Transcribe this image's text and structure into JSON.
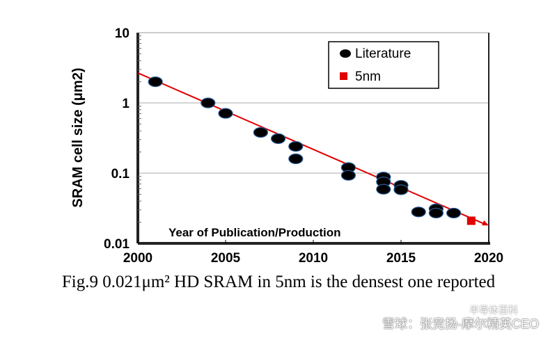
{
  "chart_data": {
    "type": "scatter",
    "ylabel": "SRAM cell size  (μm2)",
    "xlabel": "Year of Publication/Production",
    "yscale": "log",
    "xlim": [
      2000,
      2020
    ],
    "ylim": [
      0.01,
      10
    ],
    "xticks": [
      "2000",
      "2005",
      "2010",
      "2015",
      "2020"
    ],
    "yticks": [
      "0.01",
      "0.1",
      "1",
      "10"
    ],
    "grid": "horizontal at decades",
    "legend_position": "top-right",
    "series": [
      {
        "name": "Literature",
        "marker": "circle",
        "color": "#000000",
        "points": [
          [
            2001,
            2.0
          ],
          [
            2004,
            1.0
          ],
          [
            2005,
            0.71
          ],
          [
            2007,
            0.38
          ],
          [
            2008,
            0.31
          ],
          [
            2009,
            0.24
          ],
          [
            2009,
            0.16
          ],
          [
            2012,
            0.12
          ],
          [
            2012,
            0.093
          ],
          [
            2014,
            0.088
          ],
          [
            2014,
            0.075
          ],
          [
            2014,
            0.059
          ],
          [
            2015,
            0.067
          ],
          [
            2015,
            0.058
          ],
          [
            2016,
            0.028
          ],
          [
            2017,
            0.031
          ],
          [
            2017,
            0.027
          ],
          [
            2018,
            0.027
          ]
        ]
      },
      {
        "name": "5nm",
        "marker": "square",
        "color": "#e00000",
        "points": [
          [
            2019,
            0.021
          ]
        ]
      }
    ],
    "trendline": {
      "color": "#e00000",
      "points": [
        [
          2000,
          2.67
        ],
        [
          2020,
          0.018
        ]
      ]
    }
  },
  "caption": "Fig.9 0.021μm² HD SRAM in 5nm is the densest one reported",
  "watermark": {
    "line1": "半导体百科",
    "line2": "雪球：张竞扬-摩尔精英CEO"
  }
}
